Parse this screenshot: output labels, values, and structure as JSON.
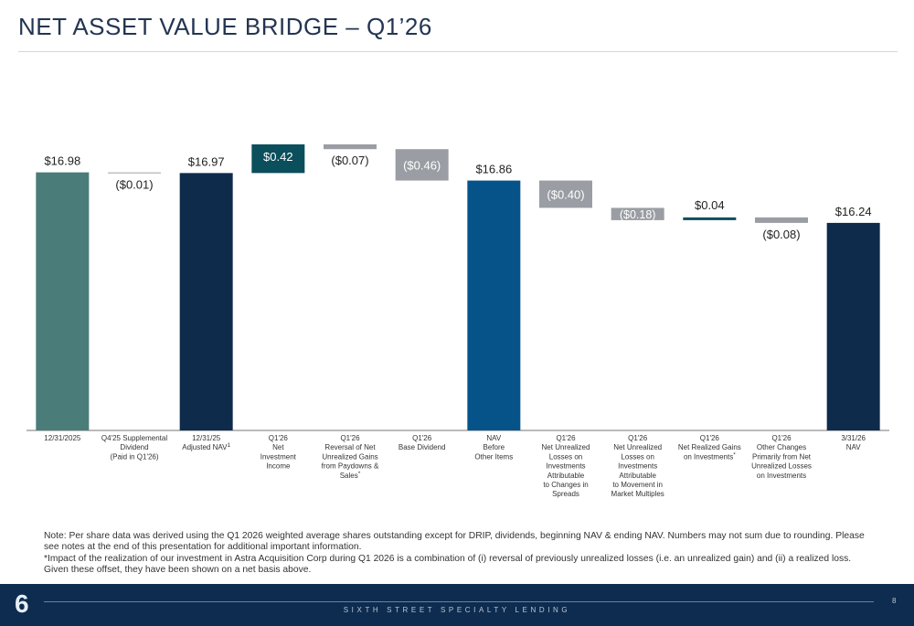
{
  "page": {
    "title": "NET ASSET VALUE BRIDGE – Q1’26",
    "note_line1": "Note: Per share data was derived using the Q1 2026 weighted average shares outstanding except for DRIP, dividends, beginning NAV & ending NAV. Numbers may not sum due to rounding. Please see notes at the end of this presentation for additional important information.",
    "note_line2": "*Impact of the realization of our investment in Astra Acquisition Corp during Q1 2026 is a combination of (i) reversal of previously unrealized losses (i.e. an unrealized gain) and (ii) a realized loss. Given these offset, they have been shown on a net basis above.",
    "footer_logo": "6",
    "footer_text": "SIXTH STREET SPECIALTY LENDING",
    "page_number": "8"
  },
  "chart_data": {
    "type": "bar",
    "subtype": "waterfall",
    "title": "",
    "xlabel": "",
    "ylabel": "",
    "grid": false,
    "legend": "none",
    "colors": {
      "start": "#4a7c7a",
      "adjusted": "#0e2b4c",
      "positive": "#0b4e5c",
      "negative": "#9a9da3",
      "mid_total": "#06538a",
      "end": "#0e2b4c",
      "thin_line": "#aeb2b8"
    },
    "categories": [
      {
        "lines": [
          "12/31/2025"
        ],
        "sup": ""
      },
      {
        "lines": [
          "Q4'25 Supplemental",
          "Dividend",
          "(Paid in Q1'26)"
        ],
        "sup": ""
      },
      {
        "lines": [
          "12/31/25",
          "Adjusted NAV"
        ],
        "sup": "1"
      },
      {
        "lines": [
          "Q1'26",
          "Net",
          "Investment",
          "Income"
        ],
        "sup": ""
      },
      {
        "lines": [
          "Q1'26",
          "Reversal of Net",
          "Unrealized Gains",
          "from Paydowns &",
          "Sales"
        ],
        "sup": "*"
      },
      {
        "lines": [
          "Q1'26",
          "Base Dividend"
        ],
        "sup": ""
      },
      {
        "lines": [
          "NAV",
          "Before",
          "Other Items"
        ],
        "sup": ""
      },
      {
        "lines": [
          "Q1'26",
          "Net Unrealized",
          "Losses on",
          "Investments",
          "Attributable",
          "to Changes in",
          "Spreads"
        ],
        "sup": ""
      },
      {
        "lines": [
          "Q1'26",
          "Net Unrealized",
          "Losses on",
          "Investments",
          "Attributable",
          "to Movement in",
          "Market Multiples"
        ],
        "sup": ""
      },
      {
        "lines": [
          "Q1'26",
          "Net Realized Gains",
          "on Investments"
        ],
        "sup": "*"
      },
      {
        "lines": [
          "Q1'26",
          "Other Changes",
          "Primarily from Net",
          "Unrealized Losses",
          "on Investments"
        ],
        "sup": ""
      },
      {
        "lines": [
          "3/31/26",
          "NAV"
        ],
        "sup": ""
      }
    ],
    "values": [
      16.98,
      -0.01,
      16.97,
      0.42,
      -0.07,
      -0.46,
      16.86,
      -0.4,
      -0.18,
      0.04,
      -0.08,
      16.24
    ],
    "kinds": [
      "start",
      "delta",
      "total",
      "delta",
      "delta",
      "delta",
      "total",
      "delta",
      "delta",
      "delta",
      "delta",
      "end"
    ],
    "bar_colors": [
      "start",
      "thin_line",
      "adjusted",
      "positive",
      "negative",
      "negative",
      "mid_total",
      "negative",
      "negative",
      "positive",
      "negative",
      "end"
    ],
    "labels": [
      "$16.98",
      "($0.01)",
      "$16.97",
      "$0.42",
      "($0.07)",
      "($0.46)",
      "$16.86",
      "($0.40)",
      "($0.18)",
      "$0.04",
      "($0.08)",
      "$16.24"
    ],
    "ylim_note": "y-axis hidden; baseline 0"
  }
}
